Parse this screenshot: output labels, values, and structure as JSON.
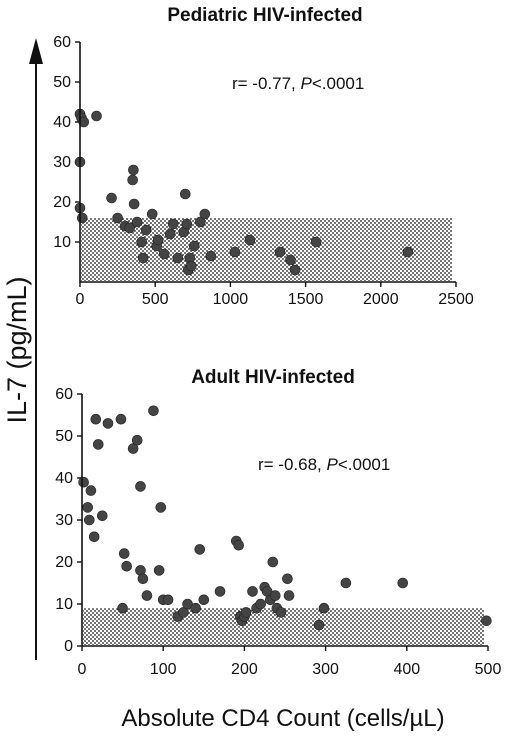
{
  "y_axis_label": "IL-7 (pg/mL)",
  "x_axis_label": "Absolute CD4 Count (cells/µL)",
  "chart_data": [
    {
      "type": "scatter",
      "title": "Pediatric HIV-infected",
      "annotation": {
        "r_text": "r= -0.77, ",
        "p_italic": "P",
        "p_text": "<.0001"
      },
      "xlim": [
        0,
        2500
      ],
      "ylim": [
        0,
        60
      ],
      "xticks": [
        0,
        500,
        1000,
        1500,
        2000,
        2500
      ],
      "yticks": [
        10,
        20,
        30,
        40,
        50,
        60
      ],
      "normal_band": [
        0,
        16
      ],
      "points": [
        [
          0,
          42
        ],
        [
          10,
          41
        ],
        [
          25,
          40
        ],
        [
          110,
          41.5
        ],
        [
          0,
          30
        ],
        [
          0,
          18.5
        ],
        [
          15,
          16
        ],
        [
          210,
          21
        ],
        [
          250,
          16
        ],
        [
          300,
          14
        ],
        [
          330,
          13.5
        ],
        [
          350,
          25.5
        ],
        [
          355,
          28
        ],
        [
          360,
          19.5
        ],
        [
          380,
          15
        ],
        [
          410,
          10
        ],
        [
          420,
          6
        ],
        [
          440,
          13
        ],
        [
          480,
          17
        ],
        [
          510,
          9
        ],
        [
          520,
          10.5
        ],
        [
          560,
          7
        ],
        [
          600,
          12
        ],
        [
          620,
          14.5
        ],
        [
          650,
          6
        ],
        [
          690,
          12.5
        ],
        [
          700,
          22
        ],
        [
          710,
          14.5
        ],
        [
          720,
          3
        ],
        [
          730,
          6
        ],
        [
          740,
          4
        ],
        [
          760,
          9
        ],
        [
          800,
          15
        ],
        [
          830,
          17
        ],
        [
          870,
          6.5
        ],
        [
          1030,
          7.5
        ],
        [
          1130,
          10.5
        ],
        [
          1330,
          7.5
        ],
        [
          1400,
          5.5
        ],
        [
          1430,
          3
        ],
        [
          1570,
          10
        ],
        [
          2180,
          7.5
        ]
      ]
    },
    {
      "type": "scatter",
      "title": "Adult HIV-infected",
      "annotation": {
        "r_text": "r= -0.68, ",
        "p_italic": "P",
        "p_text": "<.0001"
      },
      "xlim": [
        0,
        500
      ],
      "ylim": [
        0,
        60
      ],
      "xticks": [
        0,
        100,
        200,
        300,
        400,
        500
      ],
      "yticks": [
        0,
        10,
        20,
        30,
        40,
        50,
        60
      ],
      "normal_band": [
        0,
        9
      ],
      "points": [
        [
          2,
          39
        ],
        [
          7,
          33
        ],
        [
          9,
          30
        ],
        [
          11,
          37
        ],
        [
          15,
          26
        ],
        [
          17,
          54
        ],
        [
          20,
          48
        ],
        [
          25,
          31
        ],
        [
          32,
          53
        ],
        [
          48,
          54
        ],
        [
          50,
          9
        ],
        [
          52,
          22
        ],
        [
          55,
          19
        ],
        [
          63,
          47
        ],
        [
          68,
          49
        ],
        [
          72,
          38
        ],
        [
          72,
          18
        ],
        [
          75,
          16
        ],
        [
          80,
          12
        ],
        [
          88,
          56
        ],
        [
          95,
          18
        ],
        [
          97,
          33
        ],
        [
          100,
          11
        ],
        [
          106,
          11
        ],
        [
          118,
          7
        ],
        [
          125,
          8
        ],
        [
          130,
          10
        ],
        [
          140,
          9
        ],
        [
          145,
          23
        ],
        [
          150,
          11
        ],
        [
          170,
          13
        ],
        [
          190,
          25
        ],
        [
          193,
          24
        ],
        [
          195,
          7
        ],
        [
          197,
          6
        ],
        [
          200,
          7
        ],
        [
          202,
          8
        ],
        [
          210,
          13
        ],
        [
          215,
          9
        ],
        [
          220,
          10
        ],
        [
          225,
          14
        ],
        [
          228,
          13
        ],
        [
          232,
          11
        ],
        [
          235,
          20
        ],
        [
          238,
          12
        ],
        [
          240,
          9
        ],
        [
          245,
          8
        ],
        [
          253,
          16
        ],
        [
          255,
          12
        ],
        [
          292,
          5
        ],
        [
          298,
          9
        ],
        [
          325,
          15
        ],
        [
          395,
          15
        ],
        [
          498,
          6
        ]
      ]
    }
  ]
}
